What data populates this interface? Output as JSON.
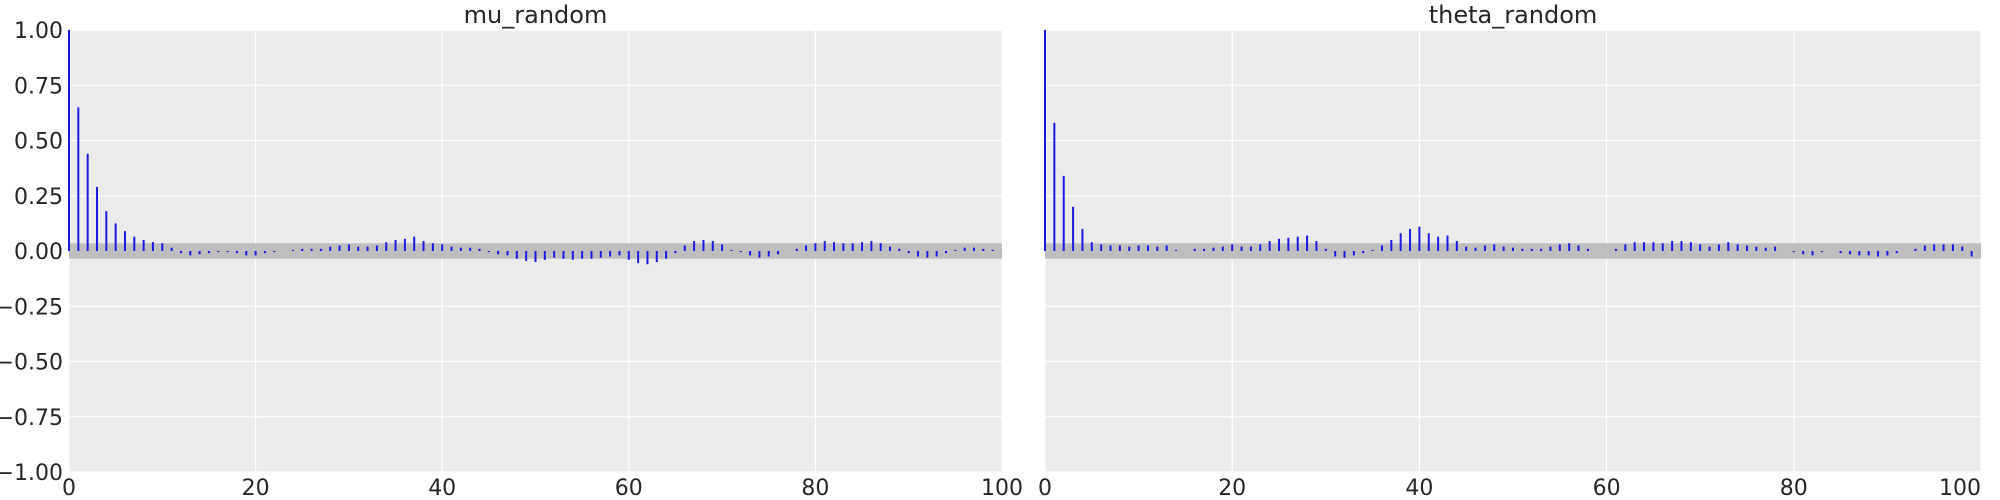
{
  "chart_data": [
    {
      "type": "bar",
      "title": "mu_random",
      "xlabel": "",
      "ylabel": "",
      "xlim": [
        0,
        100
      ],
      "ylim": [
        -1.0,
        1.0
      ],
      "x_ticks": [
        "0",
        "20",
        "40",
        "60",
        "80",
        "100"
      ],
      "y_ticks": [
        "1.00",
        "0.75",
        "0.50",
        "0.25",
        "0.00",
        "−0.25",
        "−0.50",
        "−0.75",
        "−1.00"
      ],
      "grid": true,
      "confidence_band": [
        -0.035,
        0.035
      ],
      "lags": [
        0,
        1,
        2,
        3,
        4,
        5,
        6,
        7,
        8,
        9,
        10,
        11,
        12,
        13,
        14,
        15,
        16,
        17,
        18,
        19,
        20,
        21,
        22,
        23,
        24,
        25,
        26,
        27,
        28,
        29,
        30,
        31,
        32,
        33,
        34,
        35,
        36,
        37,
        38,
        39,
        40,
        41,
        42,
        43,
        44,
        45,
        46,
        47,
        48,
        49,
        50,
        51,
        52,
        53,
        54,
        55,
        56,
        57,
        58,
        59,
        60,
        61,
        62,
        63,
        64,
        65,
        66,
        67,
        68,
        69,
        70,
        71,
        72,
        73,
        74,
        75,
        76,
        77,
        78,
        79,
        80,
        81,
        82,
        83,
        84,
        85,
        86,
        87,
        88,
        89,
        90,
        91,
        92,
        93,
        94,
        95,
        96,
        97,
        98,
        99
      ],
      "values": [
        1.0,
        0.65,
        0.44,
        0.29,
        0.18,
        0.125,
        0.09,
        0.065,
        0.05,
        0.04,
        0.035,
        0.015,
        -0.01,
        -0.02,
        -0.015,
        -0.01,
        -0.005,
        -0.005,
        -0.01,
        -0.02,
        -0.02,
        -0.01,
        -0.005,
        0.0,
        0.005,
        0.01,
        0.01,
        0.01,
        0.02,
        0.025,
        0.03,
        0.02,
        0.02,
        0.025,
        0.04,
        0.05,
        0.055,
        0.065,
        0.045,
        0.035,
        0.03,
        0.02,
        0.015,
        0.015,
        0.01,
        -0.005,
        -0.015,
        -0.02,
        -0.035,
        -0.045,
        -0.05,
        -0.04,
        -0.03,
        -0.035,
        -0.04,
        -0.035,
        -0.035,
        -0.03,
        -0.025,
        -0.02,
        -0.04,
        -0.055,
        -0.06,
        -0.05,
        -0.035,
        -0.01,
        0.025,
        0.045,
        0.05,
        0.045,
        0.03,
        0.005,
        -0.005,
        -0.02,
        -0.03,
        -0.025,
        -0.015,
        0.0,
        0.01,
        0.025,
        0.035,
        0.045,
        0.04,
        0.035,
        0.035,
        0.04,
        0.045,
        0.035,
        0.02,
        0.01,
        -0.01,
        -0.025,
        -0.03,
        -0.025,
        -0.01,
        0.005,
        0.015,
        0.015,
        0.01,
        0.005
      ]
    },
    {
      "type": "bar",
      "title": "theta_random",
      "xlabel": "",
      "ylabel": "",
      "xlim": [
        0,
        100
      ],
      "ylim": [
        -1.0,
        1.0
      ],
      "x_ticks": [
        "0",
        "20",
        "40",
        "60",
        "80",
        "100"
      ],
      "y_ticks": [],
      "grid": true,
      "confidence_band": [
        -0.035,
        0.035
      ],
      "lags": [
        0,
        1,
        2,
        3,
        4,
        5,
        6,
        7,
        8,
        9,
        10,
        11,
        12,
        13,
        14,
        15,
        16,
        17,
        18,
        19,
        20,
        21,
        22,
        23,
        24,
        25,
        26,
        27,
        28,
        29,
        30,
        31,
        32,
        33,
        34,
        35,
        36,
        37,
        38,
        39,
        40,
        41,
        42,
        43,
        44,
        45,
        46,
        47,
        48,
        49,
        50,
        51,
        52,
        53,
        54,
        55,
        56,
        57,
        58,
        59,
        60,
        61,
        62,
        63,
        64,
        65,
        66,
        67,
        68,
        69,
        70,
        71,
        72,
        73,
        74,
        75,
        76,
        77,
        78,
        79,
        80,
        81,
        82,
        83,
        84,
        85,
        86,
        87,
        88,
        89,
        90,
        91,
        92,
        93,
        94,
        95,
        96,
        97,
        98,
        99
      ],
      "values": [
        1.0,
        0.58,
        0.34,
        0.2,
        0.1,
        0.04,
        0.03,
        0.025,
        0.025,
        0.02,
        0.025,
        0.025,
        0.02,
        0.025,
        0.005,
        0.0,
        0.01,
        0.01,
        0.015,
        0.02,
        0.03,
        0.02,
        0.02,
        0.03,
        0.045,
        0.055,
        0.06,
        0.065,
        0.07,
        0.045,
        0.01,
        -0.025,
        -0.03,
        -0.02,
        -0.01,
        0.005,
        0.025,
        0.05,
        0.08,
        0.1,
        0.11,
        0.08,
        0.065,
        0.07,
        0.045,
        0.02,
        0.015,
        0.025,
        0.03,
        0.02,
        0.015,
        0.01,
        0.01,
        0.01,
        0.02,
        0.03,
        0.035,
        0.025,
        0.01,
        0.0,
        0.0,
        0.01,
        0.03,
        0.04,
        0.04,
        0.04,
        0.035,
        0.045,
        0.045,
        0.04,
        0.03,
        0.02,
        0.03,
        0.04,
        0.03,
        0.025,
        0.02,
        0.015,
        0.02,
        0.0,
        -0.005,
        -0.015,
        -0.02,
        -0.005,
        0.0,
        -0.01,
        -0.015,
        -0.02,
        -0.02,
        -0.025,
        -0.02,
        -0.01,
        0.0,
        0.01,
        0.025,
        0.03,
        0.03,
        0.03,
        0.02,
        -0.025
      ]
    }
  ]
}
